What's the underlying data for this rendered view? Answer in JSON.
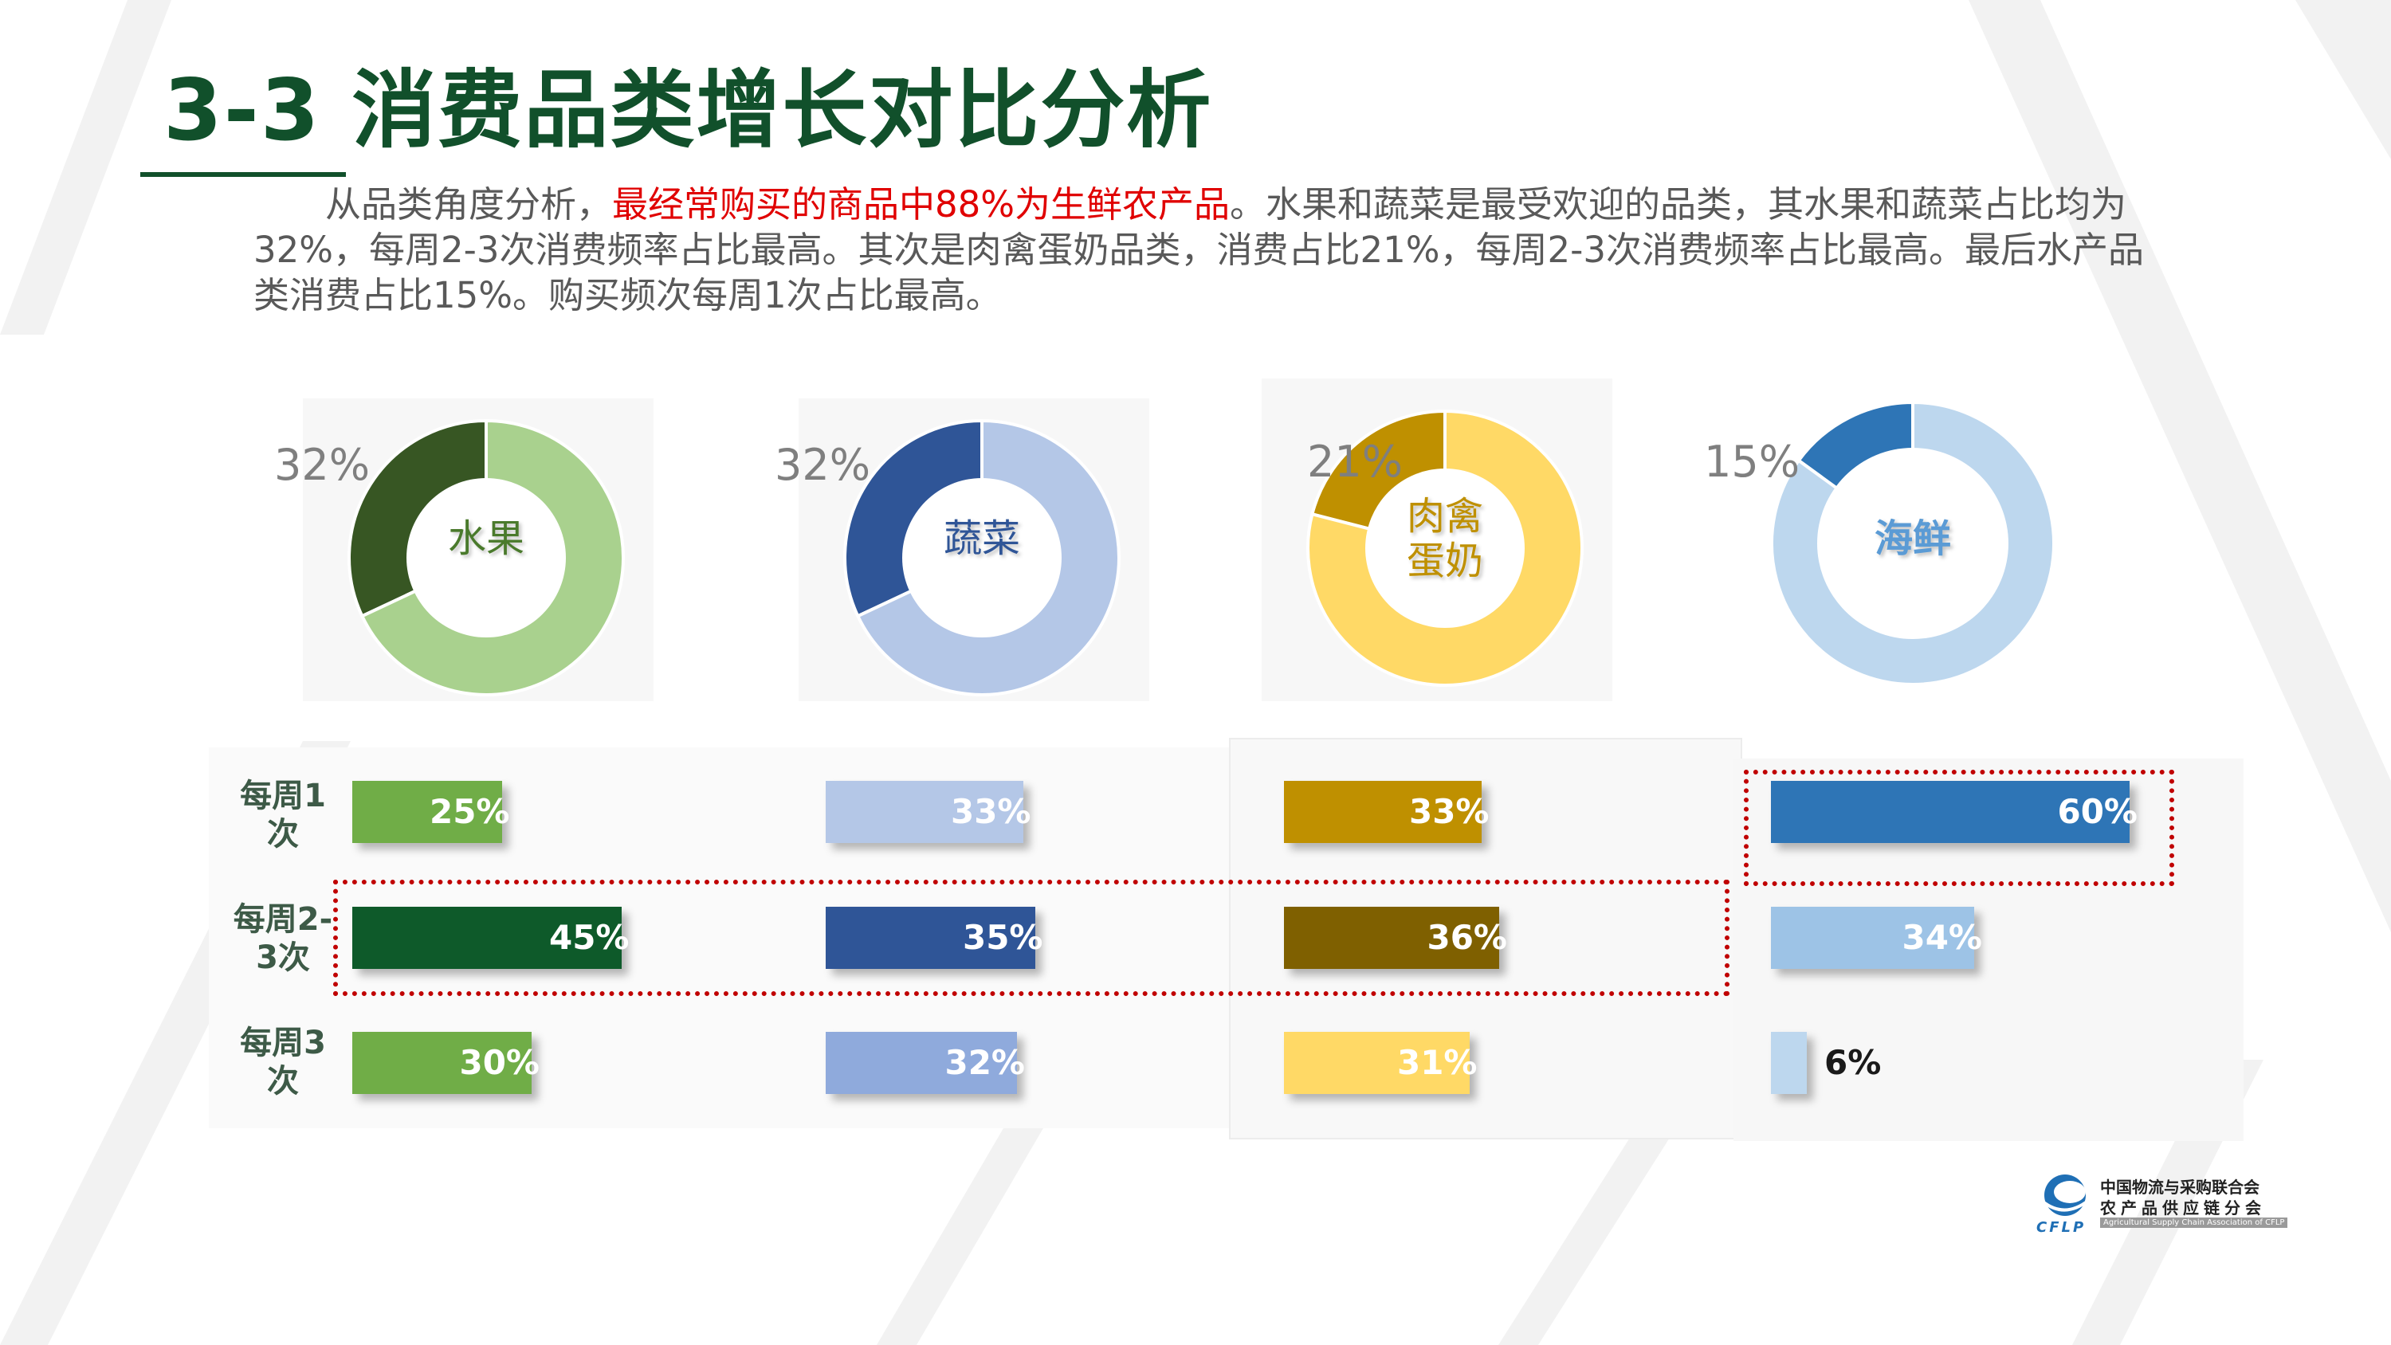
{
  "title": "3-3 消费品类增长对比分析",
  "intro": {
    "before": "从品类角度分析，",
    "highlight": "最经常购买的商品中88%为生鲜农产品",
    "after": "。水果和蔬菜是最受欢迎的品类，其水果和蔬菜占比均为32%，每周2-3次消费频率占比最高。其次是肉禽蛋奶品类，消费占比21%，每周2-3次消费频率占比最高。最后水产品类消费占比15%。购买频次每周1次占比最高。"
  },
  "colors": {
    "title": "#11502b",
    "highlight": "#e00000",
    "fruit_light": "#a9d18e",
    "fruit_dark": "#375623",
    "veg_light": "#b4c7e7",
    "veg_dark": "#2f5597",
    "meat_light": "#ffd966",
    "meat_dark": "#bf9000",
    "sea_light": "#bdd7ee",
    "sea_dark": "#2e75b6"
  },
  "chart_data": [
    {
      "type": "pie",
      "subtype": "donut",
      "center_label": "水果",
      "value_label": "32%",
      "values": [
        32,
        68
      ],
      "colors": [
        "#375623",
        "#a9d18e"
      ]
    },
    {
      "type": "pie",
      "subtype": "donut",
      "center_label": "蔬菜",
      "value_label": "32%",
      "values": [
        32,
        68
      ],
      "colors": [
        "#2f5597",
        "#b4c7e7"
      ]
    },
    {
      "type": "pie",
      "subtype": "donut",
      "center_label": "肉禽蛋奶",
      "center_lines": [
        "肉禽",
        "蛋奶"
      ],
      "value_label": "21%",
      "values": [
        21,
        79
      ],
      "colors": [
        "#bf9000",
        "#ffd966"
      ]
    },
    {
      "type": "pie",
      "subtype": "donut",
      "center_label": "海鲜",
      "value_label": "15%",
      "values": [
        15,
        85
      ],
      "colors": [
        "#2e75b6",
        "#bdd7ee"
      ]
    },
    {
      "type": "bar",
      "orientation": "horizontal",
      "categories": [
        "每周1次",
        "每周2-3次",
        "每周3次"
      ],
      "category_lines": [
        [
          "每周1",
          "次"
        ],
        [
          "每周2-",
          "3次"
        ],
        [
          "每周3",
          "次"
        ]
      ],
      "xlim": [
        0,
        100
      ],
      "series": [
        {
          "values": [
            25,
            45,
            30
          ],
          "labels": [
            "25%",
            "45%",
            "30%"
          ],
          "colors": [
            "#70ad47",
            "#0e5a2a",
            "#70ad47"
          ]
        },
        {
          "values": [
            33,
            35,
            32
          ],
          "labels": [
            "33%",
            "35%",
            "32%"
          ],
          "colors": [
            "#b4c7e7",
            "#2f5597",
            "#8faadc"
          ]
        },
        {
          "values": [
            33,
            36,
            31
          ],
          "labels": [
            "33%",
            "36%",
            "31%"
          ],
          "colors": [
            "#bf9000",
            "#7f6000",
            "#ffd966"
          ]
        },
        {
          "values": [
            60,
            34,
            6
          ],
          "labels": [
            "60%",
            "34%",
            "6%"
          ],
          "colors": [
            "#2e75b6",
            "#9dc3e6",
            "#bdd7ee"
          ]
        }
      ],
      "highlighted": [
        "每周2-3次 (水果/蔬菜/肉禽蛋奶)",
        "每周1次 (海鲜)"
      ]
    }
  ],
  "logo": {
    "line1": "中国物流与采购联合会",
    "line2": "农产品供应链分会",
    "english": "Agricultural Supply Chain Association of CFLP",
    "abbr": "CFLP"
  }
}
